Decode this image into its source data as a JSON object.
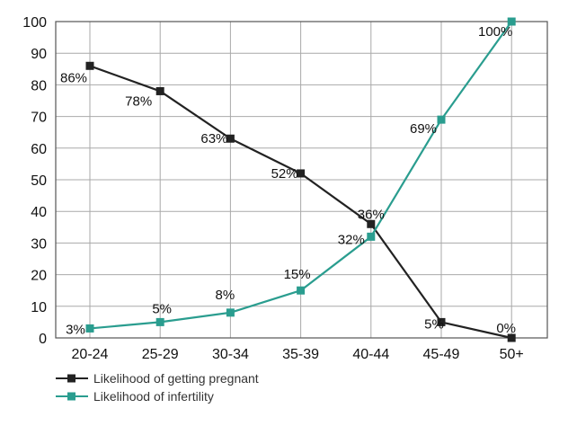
{
  "chart_data": {
    "type": "line",
    "title": "",
    "xlabel": "",
    "ylabel": "",
    "categories": [
      "20-24",
      "25-29",
      "30-34",
      "35-39",
      "40-44",
      "45-49",
      "50+"
    ],
    "ylim": [
      0,
      100
    ],
    "yticks": [
      0,
      10,
      20,
      30,
      40,
      50,
      60,
      70,
      80,
      90,
      100
    ],
    "grid": true,
    "legend_position": "bottom-left",
    "series": [
      {
        "name": "Likelihood of getting pregnant",
        "color": "#222222",
        "marker": "square",
        "values": [
          86,
          78,
          63,
          52,
          36,
          5,
          0
        ],
        "labels": [
          "86%",
          "78%",
          "63%",
          "52%",
          "36%",
          "5%",
          "0%"
        ]
      },
      {
        "name": "Likelihood of infertility",
        "color": "#2a9d8f",
        "marker": "square",
        "values": [
          3,
          5,
          8,
          15,
          32,
          69,
          100
        ],
        "labels": [
          "3%",
          "5%",
          "8%",
          "15%",
          "32%",
          "69%",
          "100%"
        ]
      }
    ]
  }
}
